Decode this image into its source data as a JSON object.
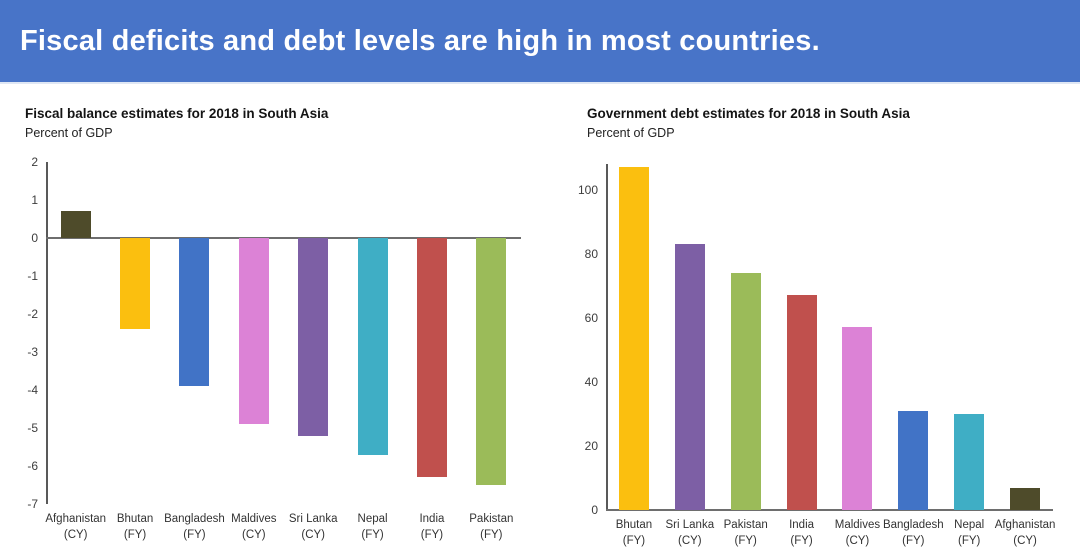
{
  "header": {
    "title": "Fiscal deficits and debt levels are high in most countries.",
    "background_color": "#4874C8",
    "text_color": "#FFFFFF"
  },
  "chart_data": [
    {
      "type": "bar",
      "title": "Fiscal balance estimates for 2018 in South Asia",
      "subtitle": "Percent of GDP",
      "xlabel": "",
      "ylabel": "Percent of GDP",
      "ylim": [
        -7,
        2
      ],
      "yticks": [
        2,
        1,
        0,
        -1,
        -2,
        -3,
        -4,
        -5,
        -6,
        -7
      ],
      "grid": false,
      "legend": false,
      "categories": [
        {
          "country": "Afghanistan",
          "period": "(CY)"
        },
        {
          "country": "Bhutan",
          "period": "(FY)"
        },
        {
          "country": "Bangladesh",
          "period": "(FY)"
        },
        {
          "country": "Maldives",
          "period": "(CY)"
        },
        {
          "country": "Sri Lanka",
          "period": "(CY)"
        },
        {
          "country": "Nepal",
          "period": "(FY)"
        },
        {
          "country": "India",
          "period": "(FY)"
        },
        {
          "country": "Pakistan",
          "period": "(FY)"
        }
      ],
      "values": [
        0.7,
        -2.4,
        -3.9,
        -4.9,
        -5.2,
        -5.7,
        -6.3,
        -6.5
      ],
      "colors": [
        "#4E4B2A",
        "#FBBF0F",
        "#4173C6",
        "#DC82D6",
        "#7D5FA5",
        "#3FAEC5",
        "#C0504D",
        "#9BBB59"
      ]
    },
    {
      "type": "bar",
      "title": "Government debt estimates for 2018 in South Asia",
      "subtitle": "Percent of GDP",
      "xlabel": "",
      "ylabel": "Percent of GDP",
      "ylim": [
        0,
        108
      ],
      "yticks": [
        100,
        80,
        60,
        40,
        20,
        0
      ],
      "grid": false,
      "legend": false,
      "categories": [
        {
          "country": "Bhutan",
          "period": "(FY)"
        },
        {
          "country": "Sri Lanka",
          "period": "(CY)"
        },
        {
          "country": "Pakistan",
          "period": "(FY)"
        },
        {
          "country": "India",
          "period": "(FY)"
        },
        {
          "country": "Maldives",
          "period": "(CY)"
        },
        {
          "country": "Bangladesh",
          "period": "(FY)"
        },
        {
          "country": "Nepal",
          "period": "(FY)"
        },
        {
          "country": "Afghanistan",
          "period": "(CY)"
        }
      ],
      "values": [
        107,
        83,
        74,
        67,
        57,
        31,
        30,
        7
      ],
      "colors": [
        "#FBBF0F",
        "#7D5FA5",
        "#9BBB59",
        "#C0504D",
        "#DC82D6",
        "#4173C6",
        "#3FAEC5",
        "#4E4B2A"
      ]
    }
  ]
}
